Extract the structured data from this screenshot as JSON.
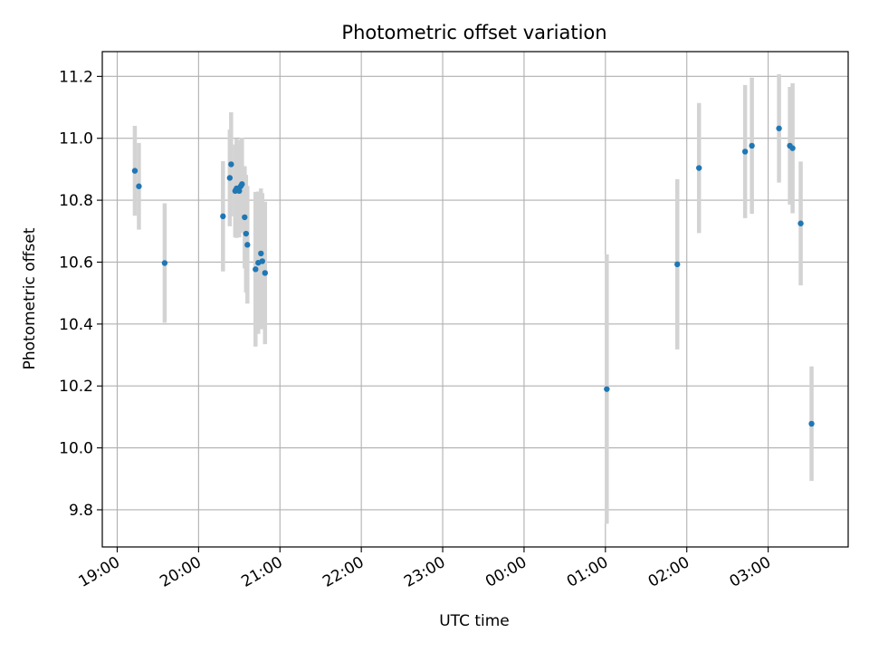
{
  "chart_data": {
    "type": "scatter",
    "title": "Photometric offset variation",
    "xlabel": "UTC time",
    "ylabel": "Photometric offset",
    "x_axis": {
      "kind": "time",
      "range": [
        "18:49",
        "03:59"
      ],
      "ticks": [
        "19:00",
        "20:00",
        "21:00",
        "22:00",
        "23:00",
        "00:00",
        "01:00",
        "02:00",
        "03:00"
      ],
      "tick_label_rotation_deg": 30
    },
    "y_axis": {
      "range": [
        9.68,
        11.28
      ],
      "ticks": [
        "9.8",
        "10.0",
        "10.2",
        "10.4",
        "10.6",
        "10.8",
        "11.0",
        "11.2"
      ]
    },
    "grid": true,
    "colors": {
      "marker": "#1f77b4",
      "errorbar": "#d3d3d3",
      "grid": "#b0b0b0"
    },
    "series": [
      {
        "points": [
          {
            "x": "19:13",
            "y": 10.895,
            "yerr": 0.145
          },
          {
            "x": "19:16",
            "y": 10.845,
            "yerr": 0.14
          },
          {
            "x": "19:35",
            "y": 10.597,
            "yerr": 0.193
          },
          {
            "x": "20:18",
            "y": 10.748,
            "yerr": 0.178
          },
          {
            "x": "20:23",
            "y": 10.872,
            "yerr": 0.156
          },
          {
            "x": "20:24",
            "y": 10.916,
            "yerr": 0.168
          },
          {
            "x": "20:27",
            "y": 10.83,
            "yerr": 0.15
          },
          {
            "x": "20:28",
            "y": 10.838,
            "yerr": 0.16
          },
          {
            "x": "20:30",
            "y": 10.83,
            "yerr": 0.15
          },
          {
            "x": "20:31",
            "y": 10.845,
            "yerr": 0.15
          },
          {
            "x": "20:32",
            "y": 10.852,
            "yerr": 0.15
          },
          {
            "x": "20:34",
            "y": 10.745,
            "yerr": 0.165
          },
          {
            "x": "20:35",
            "y": 10.692,
            "yerr": 0.19
          },
          {
            "x": "20:36",
            "y": 10.656,
            "yerr": 0.19
          },
          {
            "x": "20:42",
            "y": 10.577,
            "yerr": 0.25
          },
          {
            "x": "20:44",
            "y": 10.598,
            "yerr": 0.23
          },
          {
            "x": "20:46",
            "y": 10.628,
            "yerr": 0.21
          },
          {
            "x": "20:47",
            "y": 10.603,
            "yerr": 0.22
          },
          {
            "x": "20:49",
            "y": 10.565,
            "yerr": 0.23
          },
          {
            "x": "01:01",
            "y": 10.19,
            "yerr": 0.435
          },
          {
            "x": "01:53",
            "y": 10.593,
            "yerr": 0.275
          },
          {
            "x": "02:09",
            "y": 10.904,
            "yerr": 0.21
          },
          {
            "x": "02:43",
            "y": 10.957,
            "yerr": 0.215
          },
          {
            "x": "02:48",
            "y": 10.976,
            "yerr": 0.22
          },
          {
            "x": "03:08",
            "y": 11.032,
            "yerr": 0.175
          },
          {
            "x": "03:16",
            "y": 10.976,
            "yerr": 0.19
          },
          {
            "x": "03:18",
            "y": 10.968,
            "yerr": 0.21
          },
          {
            "x": "03:24",
            "y": 10.725,
            "yerr": 0.2
          },
          {
            "x": "03:32",
            "y": 10.078,
            "yerr": 0.185
          }
        ]
      }
    ]
  }
}
